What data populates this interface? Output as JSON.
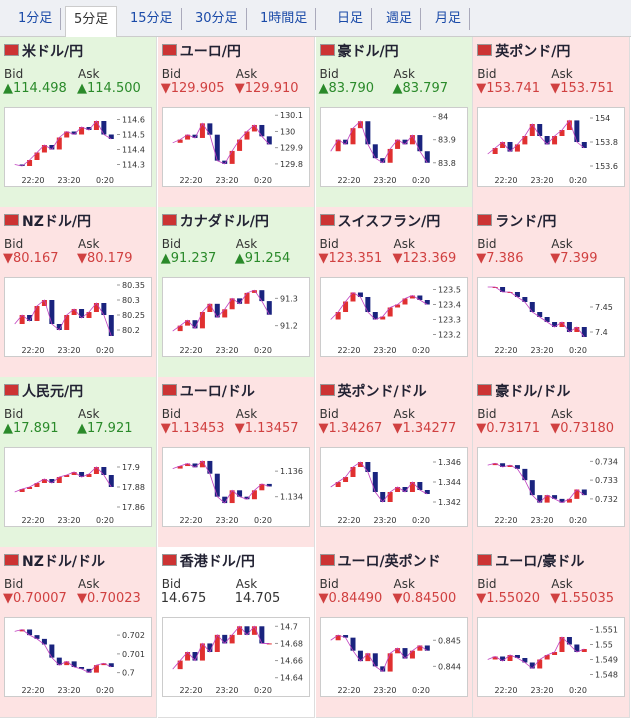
{
  "tabs": [
    "1分足",
    "5分足",
    "15分足",
    "30分足",
    "1時間足",
    "日足",
    "週足",
    "月足"
  ],
  "selected_tab": 1,
  "bid_label": "Bid",
  "ask_label": "Ask",
  "time_labels": [
    "22:20",
    "23:20",
    "0:20"
  ],
  "panels": [
    {
      "name": "米ドル/円",
      "trend": "up",
      "bid": "▲114.498",
      "ask": "▲114.500",
      "ylim": [
        114.25,
        114.65
      ],
      "yticks": [
        114.3,
        114.4,
        114.5,
        114.6
      ],
      "closes": [
        114.3,
        114.29,
        114.33,
        114.38,
        114.43,
        114.4,
        114.48,
        114.52,
        114.5,
        114.55,
        114.53,
        114.59,
        114.5,
        114.47
      ]
    },
    {
      "name": "ユーロ/円",
      "trend": "down",
      "bid": "▼129.905",
      "ask": "▼129.910",
      "ylim": [
        129.75,
        130.12
      ],
      "yticks": [
        129.8,
        129.9,
        130,
        130.1
      ],
      "closes": [
        129.93,
        129.95,
        129.98,
        129.96,
        130.05,
        129.98,
        129.82,
        129.8,
        129.88,
        129.95,
        130.0,
        130.04,
        129.97,
        129.92
      ]
    },
    {
      "name": "豪ドル/円",
      "trend": "up",
      "bid": "▲83.790",
      "ask": "▲83.797",
      "ylim": [
        83.76,
        84.02
      ],
      "yticks": [
        83.8,
        83.9,
        84
      ],
      "closes": [
        83.85,
        83.9,
        83.88,
        83.95,
        83.98,
        83.88,
        83.82,
        83.8,
        83.86,
        83.9,
        83.88,
        83.92,
        83.85,
        83.8
      ]
    },
    {
      "name": "英ポンド/円",
      "trend": "down",
      "bid": "▼153.741",
      "ask": "▼153.751",
      "ylim": [
        153.55,
        154.05
      ],
      "yticks": [
        153.6,
        153.8,
        154
      ],
      "closes": [
        153.7,
        153.75,
        153.8,
        153.72,
        153.78,
        153.85,
        153.95,
        153.85,
        153.78,
        153.85,
        153.9,
        153.98,
        153.8,
        153.75
      ]
    },
    {
      "name": "NZドル/円",
      "trend": "down",
      "bid": "▼80.167",
      "ask": "▼80.179",
      "ylim": [
        80.16,
        80.36
      ],
      "yticks": [
        80.2,
        80.25,
        80.3,
        80.35
      ],
      "closes": [
        80.22,
        80.25,
        80.23,
        80.28,
        80.3,
        80.22,
        80.2,
        80.25,
        80.27,
        80.24,
        80.26,
        80.29,
        80.25,
        80.18
      ]
    },
    {
      "name": "カナダドル/円",
      "trend": "up",
      "bid": "▲91.237",
      "ask": "▲91.254",
      "ylim": [
        91.14,
        91.36
      ],
      "yticks": [
        91.2,
        91.3
      ],
      "closes": [
        91.18,
        91.2,
        91.22,
        91.19,
        91.25,
        91.28,
        91.23,
        91.26,
        91.3,
        91.28,
        91.32,
        91.33,
        91.29,
        91.24
      ]
    },
    {
      "name": "スイスフラン/円",
      "trend": "down",
      "bid": "▼123.351",
      "ask": "▼123.369",
      "ylim": [
        123.15,
        123.55
      ],
      "yticks": [
        123.2,
        123.3,
        123.4,
        123.5
      ],
      "closes": [
        123.3,
        123.35,
        123.42,
        123.48,
        123.45,
        123.35,
        123.3,
        123.32,
        123.38,
        123.4,
        123.44,
        123.46,
        123.43,
        123.4
      ]
    },
    {
      "name": "ランド/円",
      "trend": "down",
      "bid": "▼7.386",
      "ask": "▼7.399",
      "ylim": [
        7.38,
        7.5
      ],
      "yticks": [
        7.4,
        7.45
      ],
      "closes": [
        7.49,
        7.49,
        7.48,
        7.48,
        7.47,
        7.46,
        7.44,
        7.43,
        7.42,
        7.41,
        7.42,
        7.4,
        7.41,
        7.39
      ]
    },
    {
      "name": "人民元/円",
      "trend": "up",
      "bid": "▲17.891",
      "ask": "▲17.921",
      "ylim": [
        17.855,
        17.915
      ],
      "yticks": [
        17.86,
        17.88,
        17.9
      ],
      "closes": [
        17.875,
        17.878,
        17.88,
        17.884,
        17.888,
        17.884,
        17.89,
        17.892,
        17.895,
        17.89,
        17.893,
        17.9,
        17.892,
        17.88
      ]
    },
    {
      "name": "ユーロ/ドル",
      "trend": "down",
      "bid": "▼1.13453",
      "ask": "▼1.13457",
      "ylim": [
        1.1328,
        1.1375
      ],
      "yticks": [
        1.134,
        1.136
      ],
      "closes": [
        1.1362,
        1.1364,
        1.1366,
        1.1363,
        1.1368,
        1.1358,
        1.134,
        1.1335,
        1.1345,
        1.134,
        1.1338,
        1.1345,
        1.135,
        1.1348
      ]
    },
    {
      "name": "英ポンド/ドル",
      "trend": "down",
      "bid": "▼1.34267",
      "ask": "▼1.34277",
      "ylim": [
        1.341,
        1.347
      ],
      "yticks": [
        1.342,
        1.344,
        1.346
      ],
      "closes": [
        1.3435,
        1.344,
        1.3445,
        1.3455,
        1.346,
        1.345,
        1.343,
        1.342,
        1.343,
        1.3435,
        1.343,
        1.344,
        1.3432,
        1.3428
      ]
    },
    {
      "name": "豪ドル/ドル",
      "trend": "down",
      "bid": "▼0.73171",
      "ask": "▼0.73180",
      "ylim": [
        0.7313,
        0.7345
      ],
      "yticks": [
        0.732,
        0.733,
        0.734
      ],
      "closes": [
        0.7338,
        0.7339,
        0.7337,
        0.7338,
        0.7336,
        0.733,
        0.7322,
        0.7318,
        0.7322,
        0.732,
        0.7318,
        0.732,
        0.7325,
        0.7322
      ]
    },
    {
      "name": "NZドル/ドル",
      "trend": "down",
      "bid": "▼0.70007",
      "ask": "▼0.70023",
      "ylim": [
        0.6995,
        0.7027
      ],
      "yticks": [
        0.7,
        0.701,
        0.702
      ],
      "closes": [
        0.7022,
        0.7023,
        0.702,
        0.7018,
        0.7015,
        0.7008,
        0.7004,
        0.7006,
        0.7003,
        0.7002,
        0.7,
        0.7004,
        0.7005,
        0.7003
      ]
    },
    {
      "name": "香港ドル/円",
      "trend": "flat",
      "bid": "14.675",
      "ask": "14.705",
      "ylim": [
        14.635,
        14.705
      ],
      "yticks": [
        14.64,
        14.66,
        14.68,
        14.7
      ],
      "closes": [
        14.65,
        14.66,
        14.67,
        14.66,
        14.68,
        14.67,
        14.69,
        14.68,
        14.69,
        14.7,
        14.69,
        14.7,
        14.68,
        14.68
      ]
    },
    {
      "name": "ユーロ/英ポンド",
      "trend": "down",
      "bid": "▼0.84490",
      "ask": "▼0.84500",
      "ylim": [
        0.8434,
        0.8457
      ],
      "yticks": [
        0.844,
        0.845
      ],
      "closes": [
        0.845,
        0.8452,
        0.8451,
        0.8446,
        0.8442,
        0.8445,
        0.844,
        0.8438,
        0.8445,
        0.8447,
        0.8443,
        0.8446,
        0.8448,
        0.8446
      ]
    },
    {
      "name": "ユーロ/豪ドル",
      "trend": "down",
      "bid": "▼1.55020",
      "ask": "▼1.55035",
      "ylim": [
        1.5475,
        1.5515
      ],
      "yticks": [
        1.548,
        1.549,
        1.55,
        1.551
      ],
      "closes": [
        1.549,
        1.5492,
        1.5489,
        1.5493,
        1.5491,
        1.5488,
        1.5484,
        1.549,
        1.5493,
        1.5495,
        1.5505,
        1.55,
        1.5495,
        1.5497
      ]
    }
  ]
}
